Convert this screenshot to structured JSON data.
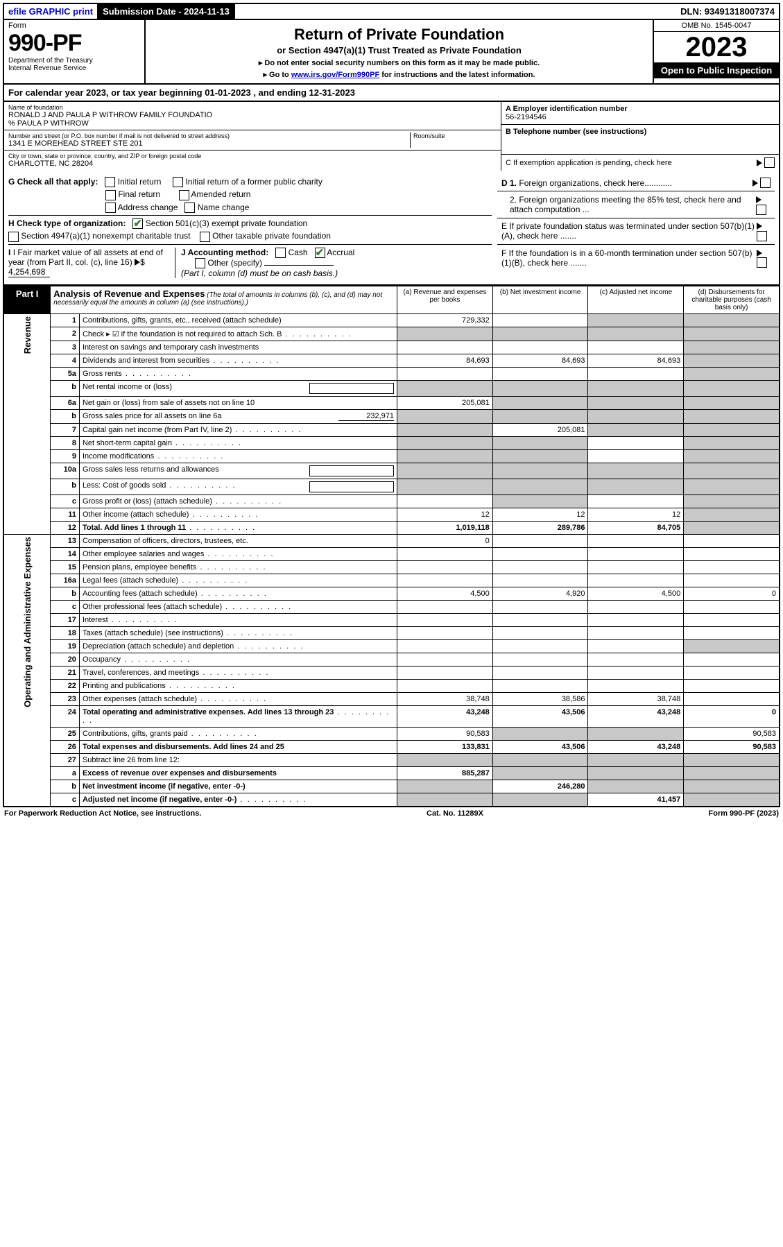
{
  "topbar": {
    "efile": "efile GRAPHIC print",
    "sub_label": "Submission Date - 2024-11-13",
    "dln": "DLN: 93491318007374"
  },
  "header": {
    "form": "Form",
    "number": "990-PF",
    "dept1": "Department of the Treasury",
    "dept2": "Internal Revenue Service",
    "title": "Return of Private Foundation",
    "subtitle": "or Section 4947(a)(1) Trust Treated as Private Foundation",
    "instr1": "▸ Do not enter social security numbers on this form as it may be made public.",
    "instr2_pre": "▸ Go to ",
    "instr2_link": "www.irs.gov/Form990PF",
    "instr2_post": " for instructions and the latest information.",
    "omb": "OMB No. 1545-0047",
    "year": "2023",
    "open": "Open to Public Inspection"
  },
  "calyear": "For calendar year 2023, or tax year beginning 01-01-2023                  , and ending 12-31-2023",
  "foundation": {
    "name_lbl": "Name of foundation",
    "name": "RONALD J AND PAULA P WITHROW FAMILY FOUNDATIO",
    "co": "% PAULA P WITHROW",
    "addr_lbl": "Number and street (or P.O. box number if mail is not delivered to street address)",
    "addr": "1341 E MOREHEAD STREET STE 201",
    "room_lbl": "Room/suite",
    "city_lbl": "City or town, state or province, country, and ZIP or foreign postal code",
    "city": "CHARLOTTE, NC  28204"
  },
  "rightinfo": {
    "a_lbl": "A Employer identification number",
    "a_val": "56-2194546",
    "b_lbl": "B Telephone number (see instructions)",
    "c_lbl": "C If exemption application is pending, check here",
    "d1_lbl": "D 1. Foreign organizations, check here............",
    "d2_lbl": "2. Foreign organizations meeting the 85% test, check here and attach computation ...",
    "e_lbl": "E  If private foundation status was terminated under section 507(b)(1)(A), check here .......",
    "f_lbl": "F  If the foundation is in a 60-month termination under section 507(b)(1)(B), check here .......",
    "tri": "▸"
  },
  "sectionG": {
    "g_lbl": "G Check all that apply:",
    "initial": "Initial return",
    "initial_former": "Initial return of a former public charity",
    "final": "Final return",
    "amended": "Amended return",
    "addr_change": "Address change",
    "name_change": "Name change",
    "h_lbl": "H Check type of organization:",
    "h1": "Section 501(c)(3) exempt private foundation",
    "h2": "Section 4947(a)(1) nonexempt charitable trust",
    "h3": "Other taxable private foundation",
    "i_lbl": "I Fair market value of all assets at end of year (from Part II, col. (c), line 16)",
    "i_val": "4,254,698",
    "j_lbl": "J Accounting method:",
    "j_cash": "Cash",
    "j_accrual": "Accrual",
    "j_other": "Other (specify)",
    "j_note": "(Part I, column (d) must be on cash basis.)"
  },
  "part1": {
    "label": "Part I",
    "title": "Analysis of Revenue and Expenses",
    "desc": " (The total of amounts in columns (b), (c), and (d) may not necessarily equal the amounts in column (a) (see instructions).)",
    "col_a": "(a)   Revenue and expenses per books",
    "col_b": "(b)    Net investment income",
    "col_c": "(c)   Adjusted net income",
    "col_d": "(d)   Disbursements for charitable purposes (cash basis only)"
  },
  "sides": {
    "revenue": "Revenue",
    "expenses": "Operating and Administrative Expenses"
  },
  "rows": [
    {
      "n": "1",
      "desc": "Contributions, gifts, grants, etc., received (attach schedule)",
      "a": "729,332",
      "b_sh": false,
      "c_sh": true,
      "d_sh": true
    },
    {
      "n": "2",
      "desc": "Check ▸ ☑ if the foundation is not required to attach Sch. B",
      "dots": true,
      "a_sh": true,
      "b_sh": true,
      "c_sh": true,
      "d_sh": true,
      "merged_a": true
    },
    {
      "n": "3",
      "desc": "Interest on savings and temporary cash investments",
      "a": "",
      "b": "",
      "c": "",
      "d_sh": true
    },
    {
      "n": "4",
      "desc": "Dividends and interest from securities",
      "dots": true,
      "a": "84,693",
      "b": "84,693",
      "c": "84,693",
      "d_sh": true
    },
    {
      "n": "5a",
      "desc": "Gross rents",
      "dots": true,
      "a": "",
      "b": "",
      "c": "",
      "d_sh": true
    },
    {
      "n": "b",
      "desc": "Net rental income or (loss)",
      "a_sh": true,
      "b_sh": true,
      "c_sh": true,
      "d_sh": true,
      "inline_input": true
    },
    {
      "n": "6a",
      "desc": "Net gain or (loss) from sale of assets not on line 10",
      "a": "205,081",
      "b_sh": true,
      "c_sh": true,
      "d_sh": true
    },
    {
      "n": "b",
      "desc": "Gross sales price for all assets on line 6a",
      "inline_val": "232,971",
      "a_sh": true,
      "b_sh": true,
      "c_sh": true,
      "d_sh": true
    },
    {
      "n": "7",
      "desc": "Capital gain net income (from Part IV, line 2)",
      "dots": true,
      "a_sh": true,
      "b": "205,081",
      "c_sh": true,
      "d_sh": true
    },
    {
      "n": "8",
      "desc": "Net short-term capital gain",
      "dots": true,
      "a_sh": true,
      "b_sh": true,
      "c": "",
      "d_sh": true
    },
    {
      "n": "9",
      "desc": "Income modifications",
      "dots": true,
      "a_sh": true,
      "b_sh": true,
      "c": "",
      "d_sh": true
    },
    {
      "n": "10a",
      "desc": "Gross sales less returns and allowances",
      "inline_input": true,
      "a_sh": true,
      "b_sh": true,
      "c_sh": true,
      "d_sh": true
    },
    {
      "n": "b",
      "desc": "Less: Cost of goods sold",
      "dots": true,
      "inline_input": true,
      "a_sh": true,
      "b_sh": true,
      "c_sh": true,
      "d_sh": true
    },
    {
      "n": "c",
      "desc": "Gross profit or (loss) (attach schedule)",
      "dots": true,
      "a": "",
      "b_sh": true,
      "c": "",
      "d_sh": true
    },
    {
      "n": "11",
      "desc": "Other income (attach schedule)",
      "dots": true,
      "a": "12",
      "b": "12",
      "c": "12",
      "d_sh": true
    },
    {
      "n": "12",
      "desc": "Total. Add lines 1 through 11",
      "dots": true,
      "bold": true,
      "a": "1,019,118",
      "b": "289,786",
      "c": "84,705",
      "d_sh": true
    },
    {
      "n": "13",
      "desc": "Compensation of officers, directors, trustees, etc.",
      "a": "0",
      "b": "",
      "c": "",
      "d": ""
    },
    {
      "n": "14",
      "desc": "Other employee salaries and wages",
      "dots": true,
      "a": "",
      "b": "",
      "c": "",
      "d": ""
    },
    {
      "n": "15",
      "desc": "Pension plans, employee benefits",
      "dots": true,
      "a": "",
      "b": "",
      "c": "",
      "d": ""
    },
    {
      "n": "16a",
      "desc": "Legal fees (attach schedule)",
      "dots": true,
      "a": "",
      "b": "",
      "c": "",
      "d": ""
    },
    {
      "n": "b",
      "desc": "Accounting fees (attach schedule)",
      "dots": true,
      "a": "4,500",
      "b": "4,920",
      "c": "4,500",
      "d": "0"
    },
    {
      "n": "c",
      "desc": "Other professional fees (attach schedule)",
      "dots": true,
      "a": "",
      "b": "",
      "c": "",
      "d": ""
    },
    {
      "n": "17",
      "desc": "Interest",
      "dots": true,
      "a": "",
      "b": "",
      "c": "",
      "d": ""
    },
    {
      "n": "18",
      "desc": "Taxes (attach schedule) (see instructions)",
      "dots": true,
      "a": "",
      "b": "",
      "c": "",
      "d": ""
    },
    {
      "n": "19",
      "desc": "Depreciation (attach schedule) and depletion",
      "dots": true,
      "a": "",
      "b": "",
      "c": "",
      "d_sh": true
    },
    {
      "n": "20",
      "desc": "Occupancy",
      "dots": true,
      "a": "",
      "b": "",
      "c": "",
      "d": ""
    },
    {
      "n": "21",
      "desc": "Travel, conferences, and meetings",
      "dots": true,
      "a": "",
      "b": "",
      "c": "",
      "d": ""
    },
    {
      "n": "22",
      "desc": "Printing and publications",
      "dots": true,
      "a": "",
      "b": "",
      "c": "",
      "d": ""
    },
    {
      "n": "23",
      "desc": "Other expenses (attach schedule)",
      "dots": true,
      "a": "38,748",
      "b": "38,586",
      "c": "38,748",
      "d": ""
    },
    {
      "n": "24",
      "desc": "Total operating and administrative expenses. Add lines 13 through 23",
      "dots": true,
      "bold": true,
      "a": "43,248",
      "b": "43,506",
      "c": "43,248",
      "d": "0"
    },
    {
      "n": "25",
      "desc": "Contributions, gifts, grants paid",
      "dots": true,
      "a": "90,583",
      "b_sh": true,
      "c_sh": true,
      "d": "90,583"
    },
    {
      "n": "26",
      "desc": "Total expenses and disbursements. Add lines 24 and 25",
      "bold": true,
      "a": "133,831",
      "b": "43,506",
      "c": "43,248",
      "d": "90,583"
    },
    {
      "n": "27",
      "desc": "Subtract line 26 from line 12:",
      "a_sh": true,
      "b_sh": true,
      "c_sh": true,
      "d_sh": true
    },
    {
      "n": "a",
      "desc": "Excess of revenue over expenses and disbursements",
      "bold": true,
      "a": "885,287",
      "b_sh": true,
      "c_sh": true,
      "d_sh": true
    },
    {
      "n": "b",
      "desc": "Net investment income (if negative, enter -0-)",
      "bold": true,
      "a_sh": true,
      "b": "246,280",
      "c_sh": true,
      "d_sh": true
    },
    {
      "n": "c",
      "desc": "Adjusted net income (if negative, enter -0-)",
      "dots": true,
      "bold": true,
      "a_sh": true,
      "b_sh": true,
      "c": "41,457",
      "d_sh": true
    }
  ],
  "footer": {
    "left": "For Paperwork Reduction Act Notice, see instructions.",
    "mid": "Cat. No. 11289X",
    "right": "Form 990-PF (2023)"
  },
  "colors": {
    "shade": "#c8c8c8",
    "link": "#0000cc",
    "check": "#3a7a3a"
  }
}
